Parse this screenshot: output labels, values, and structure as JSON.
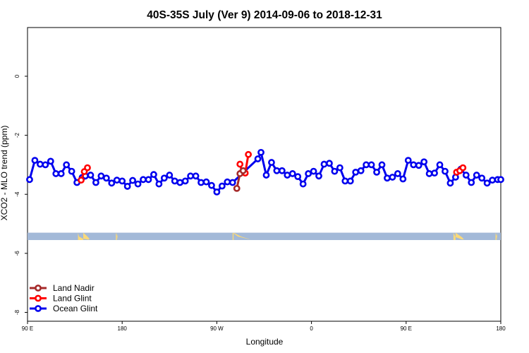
{
  "chart_data": {
    "type": "line",
    "title": "40S-35S July (Ver 9)   2014-09-06 to 2018-12-31",
    "xlabel": "Longitude",
    "ylabel": "XCO2 - MLO trend (ppm)",
    "x_ticks": [
      {
        "value": 90,
        "label": "90 E"
      },
      {
        "value": 180,
        "label": "180"
      },
      {
        "value": 270,
        "label": "90 W"
      },
      {
        "value": 360,
        "label": "0"
      },
      {
        "value": 450,
        "label": "90 E"
      },
      {
        "value": 540,
        "label": "180"
      }
    ],
    "y_ticks": [
      {
        "value": 0,
        "label": "0"
      },
      {
        "value": -2,
        "label": "-2"
      },
      {
        "value": -4,
        "label": "-4"
      },
      {
        "value": -6,
        "label": "-6"
      },
      {
        "value": -8,
        "label": "-8"
      }
    ],
    "xlim": [
      90,
      540
    ],
    "ylim": [
      -8.3,
      1.65
    ],
    "land_band_y": [
      -5.3,
      -5.55
    ],
    "colors": {
      "land_nadir": "#a52a2a",
      "land_glint": "#ff0000",
      "ocean_glint": "#0000ee",
      "ocean_band": "#a3b9d8",
      "land_patch": "#f9d97a"
    },
    "legend": {
      "position": "bottom-left",
      "entries": [
        {
          "key": "land_nadir",
          "label": "Land Nadir"
        },
        {
          "key": "land_glint",
          "label": "Land Glint"
        },
        {
          "key": "ocean_glint",
          "label": "Ocean Glint"
        }
      ]
    },
    "series": [
      {
        "name": "Ocean Glint",
        "key": "ocean_glint",
        "x": [
          92,
          97,
          102,
          107,
          112,
          117,
          122,
          127,
          132,
          137,
          142,
          145,
          150,
          155,
          160,
          165,
          170,
          175,
          180,
          185,
          190,
          195,
          200,
          205,
          210,
          215,
          220,
          225,
          230,
          235,
          240,
          245,
          250,
          255,
          260,
          265,
          270,
          275,
          280,
          285,
          309,
          312,
          317,
          322,
          327,
          332,
          337,
          342,
          347,
          352,
          357,
          362,
          367,
          372,
          377,
          382,
          387,
          392,
          397,
          402,
          407,
          412,
          417,
          422,
          427,
          432,
          437,
          442,
          447,
          452,
          457,
          462,
          467,
          472,
          477,
          482,
          487,
          492,
          497,
          502,
          507,
          512,
          517,
          522,
          527,
          532,
          537,
          540
        ],
        "y": [
          -3.5,
          -2.85,
          -2.98,
          -3.0,
          -2.88,
          -3.3,
          -3.3,
          -3.0,
          -3.22,
          -3.6,
          -3.43,
          -3.38,
          -3.35,
          -3.6,
          -3.38,
          -3.45,
          -3.62,
          -3.52,
          -3.55,
          -3.73,
          -3.53,
          -3.65,
          -3.5,
          -3.5,
          -3.33,
          -3.65,
          -3.45,
          -3.35,
          -3.55,
          -3.6,
          -3.55,
          -3.38,
          -3.38,
          -3.6,
          -3.58,
          -3.7,
          -3.92,
          -3.72,
          -3.58,
          -3.6,
          -2.8,
          -2.58,
          -3.35,
          -2.92,
          -3.2,
          -3.2,
          -3.35,
          -3.3,
          -3.4,
          -3.65,
          -3.3,
          -3.22,
          -3.38,
          -2.98,
          -2.95,
          -3.22,
          -3.1,
          -3.55,
          -3.55,
          -3.25,
          -3.2,
          -3.0,
          -3.0,
          -3.25,
          -3.0,
          -3.45,
          -3.42,
          -3.3,
          -3.48,
          -2.85,
          -3.0,
          -3.02,
          -2.9,
          -3.3,
          -3.28,
          -3.0,
          -3.22,
          -3.62,
          -3.42,
          -3.15,
          -3.35,
          -3.6,
          -3.35,
          -3.45,
          -3.62,
          -3.52,
          -3.5,
          -3.5
        ]
      },
      {
        "name": "Land Glint",
        "key": "land_glint",
        "segments": [
          {
            "x": [
              141,
              144,
              147
            ],
            "y": [
              -3.52,
              -3.23,
              -3.1
            ]
          },
          {
            "x": [
              292,
              294,
              297,
              300
            ],
            "y": [
              -2.98,
              -3.25,
              -3.28,
              -2.65
            ]
          },
          {
            "x": [
              498,
              501,
              504
            ],
            "y": [
              -3.25,
              -3.2,
              -3.1
            ]
          }
        ]
      },
      {
        "name": "Land Nadir",
        "key": "land_nadir",
        "segments": [
          {
            "x": [
              289,
              292,
              295
            ],
            "y": [
              -3.8,
              -3.3,
              -3.2
            ]
          }
        ]
      }
    ],
    "land_patches": [
      {
        "x": [
          143,
          147,
          149,
          148,
          143,
          139,
          138
        ]
      },
      {
        "x": [
          174,
          176,
          175
        ]
      },
      {
        "x": [
          286,
          293,
          300,
          302,
          299,
          290,
          285
        ]
      },
      {
        "x": [
          497,
          503,
          505,
          503,
          497,
          495
        ]
      },
      {
        "x": [
          535,
          537,
          536
        ]
      }
    ]
  }
}
